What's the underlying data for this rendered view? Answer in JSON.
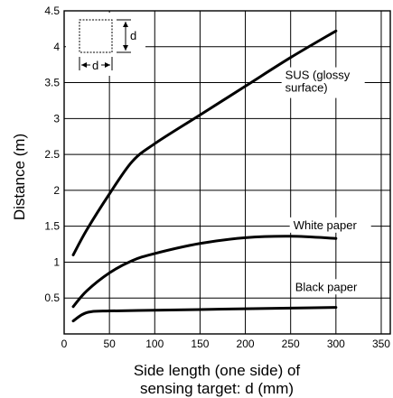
{
  "chart_data": {
    "type": "line",
    "title": "",
    "xlabel_line1": "Side length (one side) of",
    "xlabel_line2": "sensing target: d (mm)",
    "ylabel": "Distance (m)",
    "xlim": [
      0,
      360
    ],
    "ylim": [
      0,
      4.5
    ],
    "xticks": [
      0,
      50,
      100,
      150,
      200,
      250,
      300,
      350
    ],
    "yticks": [
      0.5,
      1,
      1.5,
      2,
      2.5,
      3,
      3.5,
      4,
      4.5
    ],
    "xtick_labels": [
      "0",
      "50",
      "100",
      "150",
      "200",
      "250",
      "300",
      "350"
    ],
    "ytick_labels": [
      "0.5",
      "1",
      "1.5",
      "2",
      "2.5",
      "3",
      "3.5",
      "4",
      "4.5"
    ],
    "grid": true,
    "series": [
      {
        "name": "SUS (glossy surface)",
        "label_lines": [
          "SUS (glossy",
          "surface)"
        ],
        "x": [
          10,
          25,
          50,
          75,
          100,
          150,
          200,
          250,
          300
        ],
        "y": [
          1.1,
          1.45,
          1.95,
          2.4,
          2.65,
          3.05,
          3.45,
          3.85,
          4.22
        ]
      },
      {
        "name": "White paper",
        "label_lines": [
          "White paper"
        ],
        "x": [
          10,
          25,
          50,
          75,
          100,
          150,
          200,
          250,
          300
        ],
        "y": [
          0.38,
          0.6,
          0.85,
          1.02,
          1.12,
          1.26,
          1.34,
          1.36,
          1.33
        ]
      },
      {
        "name": "Black paper",
        "label_lines": [
          "Black paper"
        ],
        "x": [
          10,
          20,
          30,
          50,
          100,
          150,
          200,
          250,
          300
        ],
        "y": [
          0.18,
          0.27,
          0.31,
          0.32,
          0.33,
          0.34,
          0.35,
          0.36,
          0.37
        ]
      }
    ],
    "inset_label": "d"
  }
}
